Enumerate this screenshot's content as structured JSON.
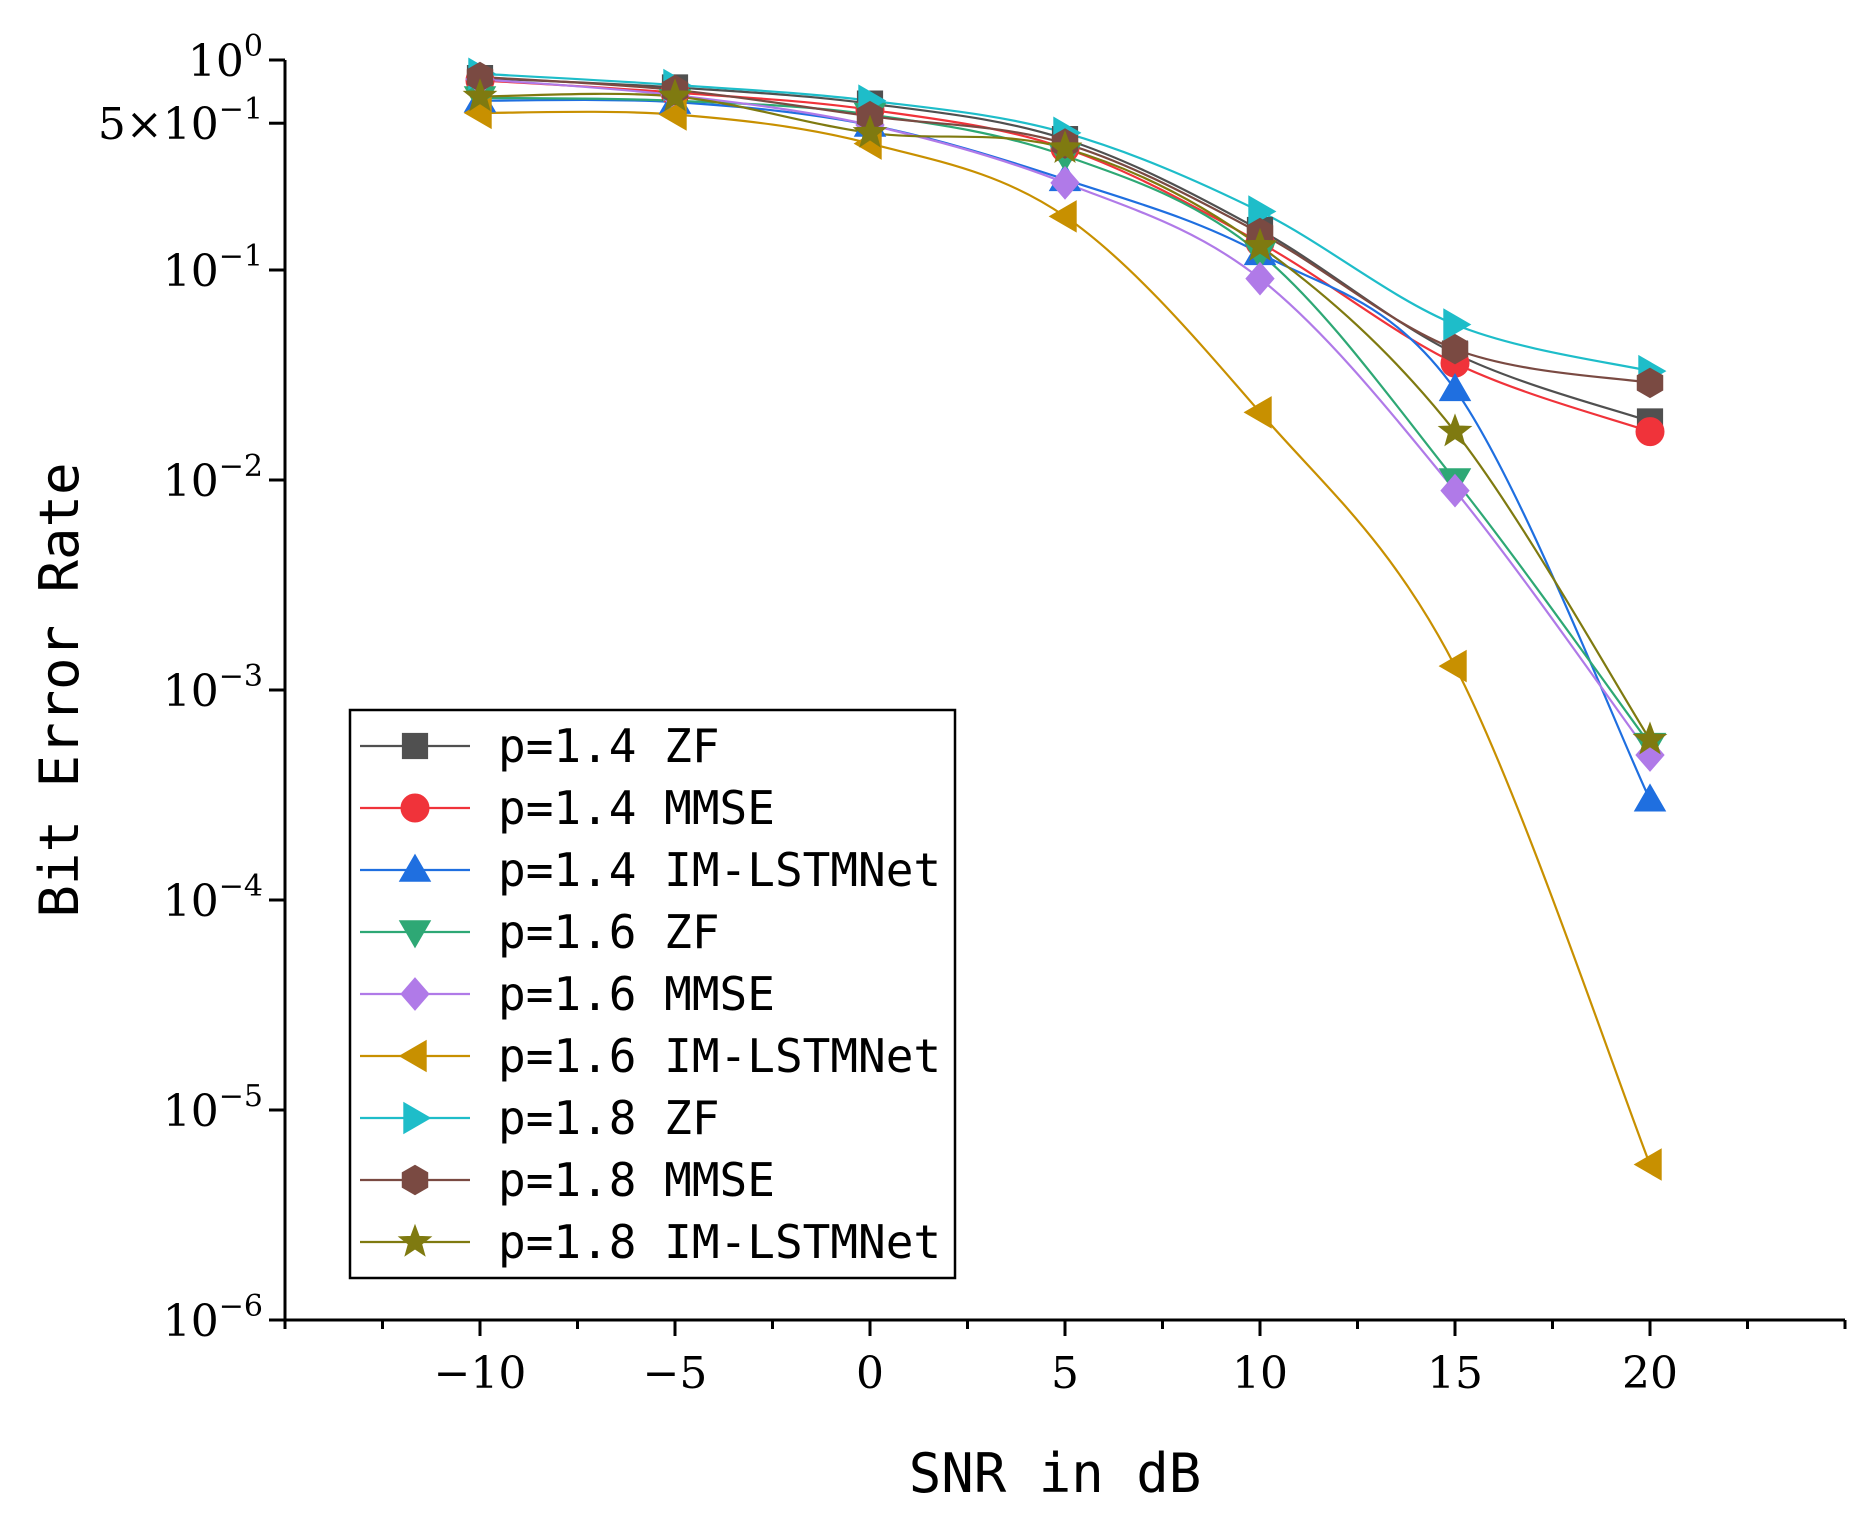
{
  "chart_data": {
    "type": "line",
    "title": "",
    "xlabel": "SNR in dB",
    "ylabel": "Bit Error Rate",
    "y_scale": "log",
    "xlim": [
      -15,
      25
    ],
    "ylim": [
      1e-06,
      1
    ],
    "x": [
      -10,
      -5,
      0,
      5,
      10,
      15,
      20
    ],
    "x_tick_labels": [
      "−10",
      "−5",
      "0",
      "5",
      "10",
      "15",
      "20"
    ],
    "y_ticks": [
      {
        "value": 1,
        "base": "10",
        "exp": "0"
      },
      {
        "value": 0.5,
        "base": "5×10",
        "exp": "−1"
      },
      {
        "value": 0.1,
        "base": "10",
        "exp": "−1"
      },
      {
        "value": 0.01,
        "base": "10",
        "exp": "−2"
      },
      {
        "value": 0.001,
        "base": "10",
        "exp": "−3"
      },
      {
        "value": 0.0001,
        "base": "10",
        "exp": "−4"
      },
      {
        "value": 1e-05,
        "base": "10",
        "exp": "−5"
      },
      {
        "value": 1e-06,
        "base": "10",
        "exp": "−6"
      }
    ],
    "legend_position": "lower-left",
    "grid": false,
    "series": [
      {
        "name": "p=1.4 ZF",
        "color": "#505050",
        "marker": "square",
        "values": [
          0.82,
          0.74,
          0.62,
          0.42,
          0.155,
          0.04,
          0.019
        ]
      },
      {
        "name": "p=1.4 MMSE",
        "color": "#f0333a",
        "marker": "circle",
        "values": [
          0.8,
          0.7,
          0.58,
          0.38,
          0.135,
          0.036,
          0.017
        ]
      },
      {
        "name": "p=1.4 IM-LSTMNet",
        "color": "#1f6fe0",
        "marker": "triangle-up",
        "values": [
          0.64,
          0.63,
          0.49,
          0.27,
          0.12,
          0.027,
          0.0003
        ]
      },
      {
        "name": "p=1.6 ZF",
        "color": "#2ea875",
        "marker": "triangle-down",
        "values": [
          0.66,
          0.64,
          0.55,
          0.35,
          0.12,
          0.01,
          0.00055
        ]
      },
      {
        "name": "p=1.6 MMSE",
        "color": "#b07ae8",
        "marker": "diamond",
        "values": [
          0.81,
          0.68,
          0.49,
          0.26,
          0.091,
          0.0089,
          0.00049
        ]
      },
      {
        "name": "p=1.6 IM-LSTMNet",
        "color": "#c89000",
        "marker": "triangle-left",
        "values": [
          0.56,
          0.55,
          0.4,
          0.18,
          0.021,
          0.0013,
          5.5e-06
        ]
      },
      {
        "name": "p=1.8 ZF",
        "color": "#1ebdc9",
        "marker": "triangle-right",
        "values": [
          0.86,
          0.76,
          0.64,
          0.45,
          0.19,
          0.055,
          0.033
        ]
      },
      {
        "name": "p=1.8 MMSE",
        "color": "#7a4a42",
        "marker": "hexagon",
        "values": [
          0.83,
          0.72,
          0.54,
          0.4,
          0.15,
          0.042,
          0.029
        ]
      },
      {
        "name": "p=1.8 IM-LSTMNet",
        "color": "#7f7a10",
        "marker": "star",
        "values": [
          0.67,
          0.67,
          0.45,
          0.38,
          0.13,
          0.017,
          0.00058
        ]
      }
    ]
  }
}
